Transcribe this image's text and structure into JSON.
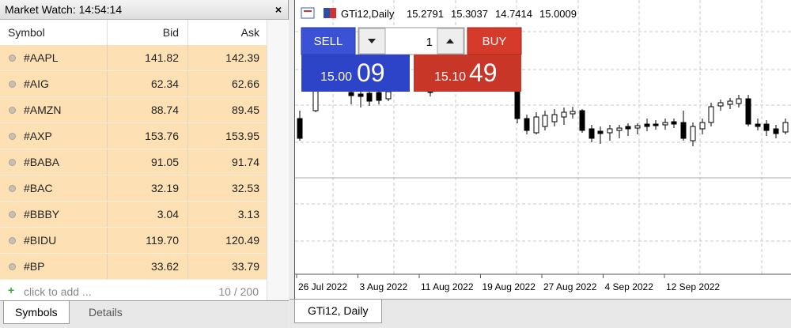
{
  "market_watch": {
    "title": "Market Watch: 14:54:14",
    "close": "×",
    "columns": [
      "Symbol",
      "Bid",
      "Ask"
    ],
    "rows": [
      [
        "#AAPL",
        "141.82",
        "142.39"
      ],
      [
        "#AIG",
        "62.34",
        "62.66"
      ],
      [
        "#AMZN",
        "88.74",
        "89.45"
      ],
      [
        "#AXP",
        "153.76",
        "153.95"
      ],
      [
        "#BABA",
        "91.05",
        "91.74"
      ],
      [
        "#BAC",
        "32.19",
        "32.53"
      ],
      [
        "#BBBY",
        "3.04",
        "3.13"
      ],
      [
        "#BIDU",
        "119.70",
        "120.49"
      ],
      [
        "#BP",
        "33.62",
        "33.79"
      ]
    ],
    "add_row": "click to add ...",
    "count": "10 / 200",
    "tabs": [
      "Symbols",
      "Details"
    ]
  },
  "chart": {
    "symbol": "GTi12,Daily",
    "ohlc": [
      "15.2791",
      "15.3037",
      "14.7414",
      "15.0009"
    ],
    "trade": {
      "sell": "SELL",
      "buy": "BUY",
      "volume": "1",
      "bid_main": "15.00",
      "bid_big": "09",
      "ask_main": "15.10",
      "ask_big": "49"
    },
    "dates": [
      "26 Jul 2022",
      "3 Aug 2022",
      "11 Aug 2022",
      "19 Aug 2022",
      "27 Aug 2022",
      "4 Sep 2022",
      "12 Sep 2022"
    ],
    "tab": "GTi12, Daily"
  }
}
